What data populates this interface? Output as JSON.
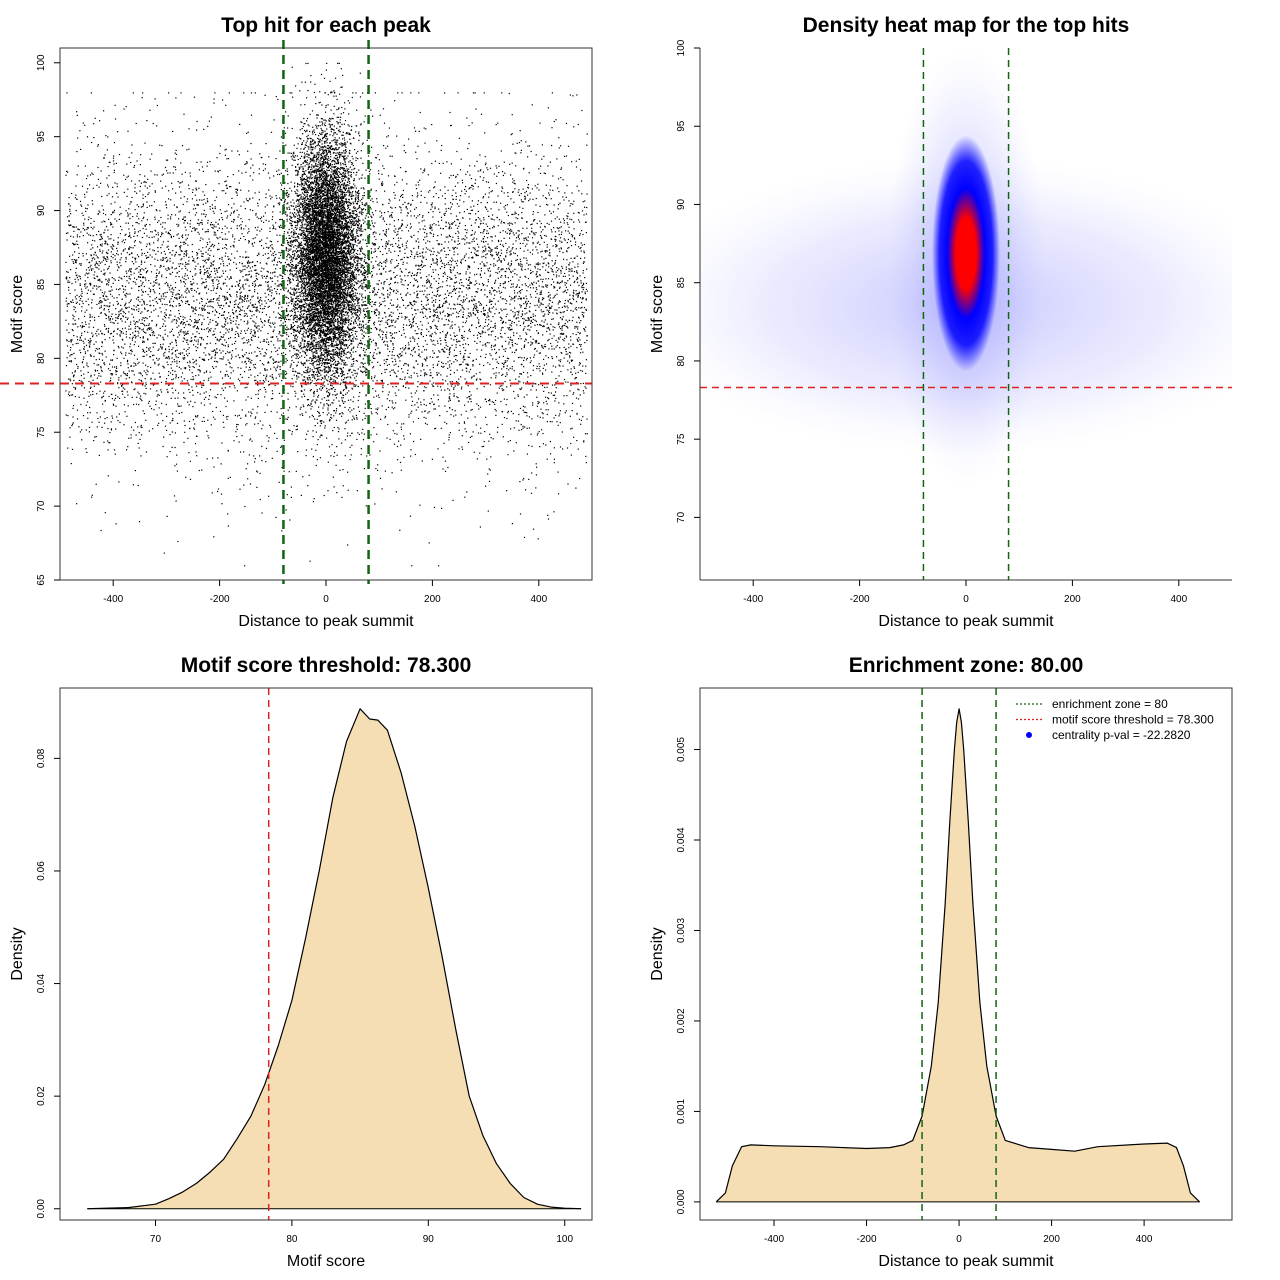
{
  "colors": {
    "threshold_red": "#dd2222",
    "zone_green": "#116611",
    "fill_wheat": "#f5deb3",
    "heat_blue": "#0000ff",
    "heat_red": "#ff0000",
    "point_black": "#000000",
    "pval_blue": "#0000ff"
  },
  "chart_data": [
    {
      "id": "top-hits-scatter",
      "type": "scatter",
      "title": "Top hit for each peak",
      "xlabel": "Distance to peak summit",
      "ylabel": "Motif score",
      "xlim": [
        -500,
        500
      ],
      "ylim": [
        65,
        101
      ],
      "xticks": [
        "-400",
        "-200",
        "0",
        "200",
        "400"
      ],
      "yticks": [
        "65",
        "70",
        "75",
        "80",
        "85",
        "90",
        "95",
        "100"
      ],
      "distribution": {
        "background": {
          "x_range": [
            -490,
            490
          ],
          "score_mean": 84,
          "score_sd": 5,
          "score_range": [
            66,
            98
          ]
        },
        "central_cluster": {
          "x_mean": 0,
          "x_sd": 30,
          "score_mean": 87,
          "score_sd": 4,
          "score_range": [
            72,
            100
          ]
        }
      },
      "hlines": [
        {
          "name": "motif score threshold",
          "value": 78.3
        }
      ],
      "vlines": [
        {
          "name": "enrichment zone low",
          "value": -80
        },
        {
          "name": "enrichment zone high",
          "value": 80
        }
      ]
    },
    {
      "id": "density-heatmap",
      "type": "heatmap",
      "title": "Density heat map for the top hits",
      "xlabel": "Distance to peak summit",
      "ylabel": "Motif score",
      "xlim": [
        -500,
        500
      ],
      "ylim": [
        66,
        100
      ],
      "xticks": [
        "-400",
        "-200",
        "0",
        "200",
        "400"
      ],
      "yticks": [
        "70",
        "75",
        "80",
        "85",
        "90",
        "95",
        "100"
      ],
      "peak": {
        "x": 0,
        "score": 87
      },
      "hlines": [
        {
          "name": "motif score threshold",
          "value": 78.3
        }
      ],
      "vlines": [
        {
          "name": "enrichment zone low",
          "value": -80
        },
        {
          "name": "enrichment zone high",
          "value": 80
        }
      ]
    },
    {
      "id": "score-density",
      "type": "area",
      "title": "Motif score threshold: 78.300",
      "xlabel": "Motif score",
      "ylabel": "Density",
      "xlim": [
        63,
        102
      ],
      "ylim": [
        -0.002,
        0.0925
      ],
      "xticks": [
        "70",
        "80",
        "90",
        "100"
      ],
      "yticks": [
        "0.00",
        "0.02",
        "0.04",
        "0.06",
        "0.08"
      ],
      "x": [
        65,
        68,
        70,
        71,
        72,
        73,
        74,
        75,
        76,
        77,
        78,
        79,
        80,
        81,
        82,
        83,
        84,
        85,
        85.7,
        86.3,
        87,
        88,
        89,
        90,
        91,
        92,
        93,
        94,
        95,
        96,
        97,
        98,
        99,
        100,
        101.2
      ],
      "y": [
        0,
        0.0002,
        0.0008,
        0.0018,
        0.003,
        0.0045,
        0.0065,
        0.0088,
        0.0125,
        0.0165,
        0.022,
        0.029,
        0.037,
        0.048,
        0.06,
        0.073,
        0.083,
        0.0888,
        0.087,
        0.0868,
        0.085,
        0.0775,
        0.068,
        0.057,
        0.045,
        0.032,
        0.02,
        0.013,
        0.008,
        0.0045,
        0.002,
        0.0008,
        0.0003,
        0.0001,
        0
      ],
      "vlines": [
        {
          "name": "motif score threshold",
          "value": 78.3
        }
      ]
    },
    {
      "id": "distance-density",
      "type": "area",
      "title": "Enrichment zone: 80.00",
      "xlabel": "Distance to peak summit",
      "ylabel": "Density",
      "xlim": [
        -560,
        590
      ],
      "ylim": [
        -0.0002,
        0.00568
      ],
      "xticks": [
        "-400",
        "-200",
        "0",
        "200",
        "400"
      ],
      "yticks": [
        "0.000",
        "0.001",
        "0.002",
        "0.003",
        "0.004",
        "0.005"
      ],
      "x": [
        -525,
        -505,
        -490,
        -470,
        -450,
        -400,
        -300,
        -200,
        -150,
        -120,
        -100,
        -80,
        -60,
        -45,
        -30,
        -20,
        -10,
        -5,
        0,
        5,
        10,
        20,
        30,
        45,
        60,
        80,
        100,
        150,
        200,
        250,
        300,
        400,
        450,
        470,
        485,
        500,
        520
      ],
      "y": [
        0,
        0.0001,
        0.0004,
        0.00061,
        0.00063,
        0.00062,
        0.00061,
        0.00059,
        0.0006,
        0.00063,
        0.00068,
        0.00095,
        0.0015,
        0.0022,
        0.0033,
        0.0042,
        0.005,
        0.0053,
        0.00545,
        0.0053,
        0.005,
        0.0042,
        0.0033,
        0.0022,
        0.0015,
        0.00095,
        0.00068,
        0.0006,
        0.00058,
        0.00056,
        0.00061,
        0.00064,
        0.00065,
        0.0006,
        0.0004,
        0.0001,
        0
      ],
      "vlines": [
        {
          "name": "enrichment zone low",
          "value": -80
        },
        {
          "name": "enrichment zone high",
          "value": 80
        }
      ],
      "legend": {
        "position": "top-right",
        "entries": [
          {
            "label": "enrichment zone = 80",
            "style": "dotted",
            "color": "#116611"
          },
          {
            "label": "motif score threshold = 78.300",
            "style": "dotted",
            "color": "#dd2222"
          },
          {
            "label": "centrality p-val = -22.2820",
            "style": "point",
            "color": "#0000ff"
          }
        ]
      }
    }
  ]
}
